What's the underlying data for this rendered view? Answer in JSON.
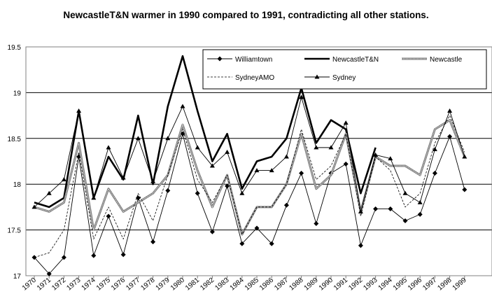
{
  "chart_data": {
    "type": "line",
    "title": "NewcastleT&N warmer in 1990 compared to 1991, contradicting all other stations.",
    "xlabel": "",
    "ylabel": "",
    "x": [
      1970,
      1971,
      1972,
      1973,
      1974,
      1975,
      1976,
      1977,
      1978,
      1979,
      1980,
      1981,
      1982,
      1983,
      1984,
      1985,
      1986,
      1987,
      1988,
      1989,
      1990,
      1991,
      1992,
      1993,
      1994,
      1995,
      1996,
      1997,
      1998,
      1999
    ],
    "x_labels": [
      "1970",
      "1971",
      "1972",
      "1973",
      "1974",
      "1975",
      "1976",
      "1977",
      "1978",
      "1979",
      "1980",
      "1981",
      "1982",
      "1983",
      "1984",
      "1985",
      "1986",
      "1987",
      "1988",
      "1989",
      "1990",
      "1991",
      "1992",
      "1993",
      "1994",
      "1995",
      "1996",
      "1997",
      "1998",
      "1999"
    ],
    "ylim": [
      17,
      19.5
    ],
    "yticks": [
      "17",
      "17.5",
      "18",
      "18.5",
      "19",
      "19.5"
    ],
    "ytick_values": [
      17,
      17.5,
      18,
      18.5,
      19,
      19.5
    ],
    "grid": true,
    "legend_position": "top-right",
    "series": [
      {
        "name": "Williamtown",
        "color": "#000000",
        "style": "thin-diamond",
        "values": [
          17.2,
          17.02,
          17.2,
          18.3,
          17.22,
          17.65,
          17.23,
          17.85,
          17.37,
          17.93,
          18.55,
          17.9,
          17.48,
          17.98,
          17.35,
          17.52,
          17.35,
          17.77,
          18.12,
          17.57,
          18.12,
          18.22,
          17.33,
          17.73,
          17.73,
          17.6,
          17.67,
          18.12,
          18.52,
          17.94
        ]
      },
      {
        "name": "NewcastleT&N",
        "color": "#000000",
        "style": "thick",
        "values": [
          17.8,
          17.75,
          17.85,
          18.8,
          17.85,
          18.3,
          18.05,
          18.75,
          18.0,
          18.85,
          19.4,
          18.8,
          18.25,
          18.55,
          17.95,
          18.25,
          18.3,
          18.5,
          19.05,
          18.45,
          18.7,
          18.6,
          17.9,
          18.4,
          null,
          null,
          null,
          null,
          null,
          null
        ]
      },
      {
        "name": "Newcastle",
        "color": "#8a8a8a",
        "style": "double",
        "values": [
          17.75,
          17.7,
          17.8,
          18.45,
          17.5,
          17.95,
          17.7,
          17.8,
          17.9,
          18.1,
          18.65,
          18.15,
          17.75,
          18.1,
          17.45,
          17.75,
          17.75,
          18.0,
          18.55,
          17.95,
          18.1,
          18.55,
          17.7,
          18.3,
          18.2,
          18.2,
          18.1,
          18.6,
          18.7,
          18.3
        ]
      },
      {
        "name": "SydneyAMO",
        "color": "#000000",
        "style": "dashed",
        "values": [
          17.2,
          17.25,
          17.5,
          18.35,
          17.4,
          17.75,
          17.4,
          17.9,
          17.6,
          18.1,
          18.6,
          18.05,
          17.8,
          18.1,
          17.45,
          17.75,
          17.75,
          18.0,
          18.6,
          18.05,
          18.2,
          18.55,
          17.65,
          18.3,
          18.15,
          17.75,
          17.9,
          18.45,
          18.75,
          18.35
        ]
      },
      {
        "name": "Sydney",
        "color": "#000000",
        "style": "thin-triangle",
        "values": [
          17.75,
          17.9,
          18.05,
          18.8,
          17.85,
          18.4,
          18.07,
          18.5,
          18.03,
          18.5,
          18.85,
          18.4,
          18.2,
          18.35,
          17.9,
          18.15,
          18.15,
          18.3,
          18.95,
          18.4,
          18.4,
          18.67,
          17.7,
          18.32,
          18.28,
          17.9,
          17.8,
          18.38,
          18.8,
          18.3
        ]
      }
    ]
  }
}
